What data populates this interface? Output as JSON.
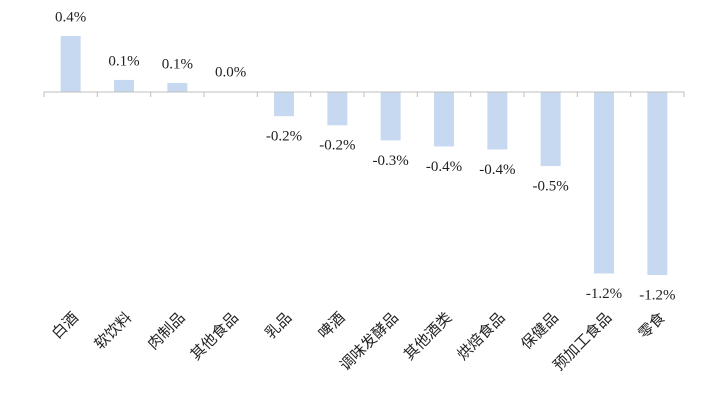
{
  "chart_data": {
    "type": "bar",
    "categories": [
      "白酒",
      "软饮料",
      "肉制品",
      "其他食品",
      "乳品",
      "啤酒",
      "调味发酵品",
      "其他酒类",
      "烘焙食品",
      "保健品",
      "预加工食品",
      "零食"
    ],
    "values": [
      0.37,
      0.08,
      0.06,
      0.0,
      -0.16,
      -0.22,
      -0.32,
      -0.36,
      -0.38,
      -0.49,
      -1.2,
      -1.21
    ],
    "value_labels": [
      "0.4%",
      "0.1%",
      "0.1%",
      "0.0%",
      "-0.2%",
      "-0.2%",
      "-0.3%",
      "-0.4%",
      "-0.4%",
      "-0.5%",
      "-1.2%",
      "-1.2%"
    ],
    "color": "#c6d9f1"
  }
}
